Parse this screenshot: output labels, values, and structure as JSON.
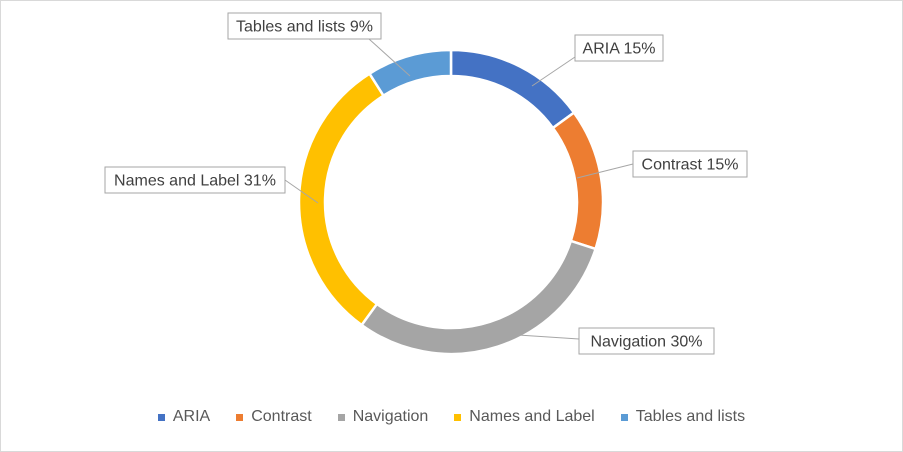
{
  "chart_data": {
    "type": "pie",
    "variant": "doughnut",
    "title": "",
    "legend_position": "bottom",
    "slices": [
      {
        "label": "ARIA",
        "value": 15,
        "display": "ARIA 15%",
        "color": "#4472c4"
      },
      {
        "label": "Contrast",
        "value": 15,
        "display": "Contrast 15%",
        "color": "#ed7d31"
      },
      {
        "label": "Navigation",
        "value": 30,
        "display": "Navigation 30%",
        "color": "#a5a5a5"
      },
      {
        "label": "Names and Label",
        "value": 31,
        "display": "Names and Label 31%",
        "color": "#ffc000"
      },
      {
        "label": "Tables and lists",
        "value": 9,
        "display": "Tables and lists 9%",
        "color": "#5b9bd5"
      }
    ]
  }
}
